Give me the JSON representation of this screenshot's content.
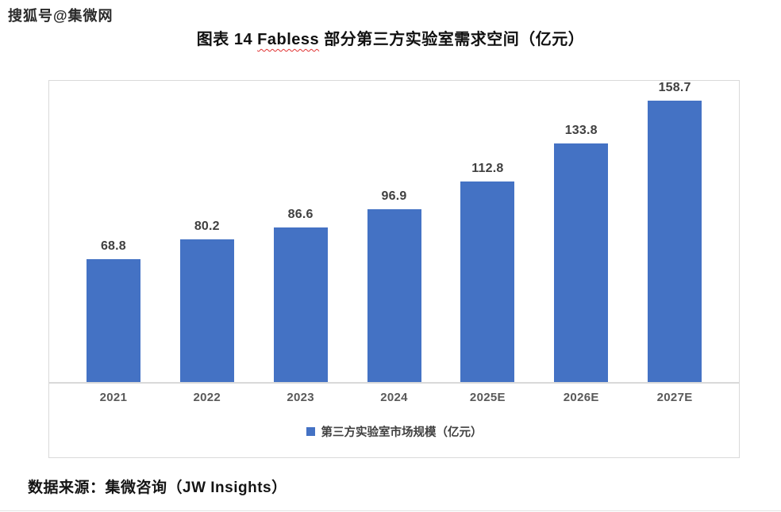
{
  "watermark": "搜狐号@集微网",
  "title": {
    "prefix": "图表 14 ",
    "highlight": "Fabless",
    "suffix": " 部分第三方实验室需求空间（亿元）"
  },
  "source": "数据来源：集微咨询（JW Insights）",
  "colors": {
    "bar": "#4472C4",
    "value_label": "#404040",
    "axis_label": "#595959",
    "axis_line": "#D9D9D9",
    "misspell_underline": "#E03131"
  },
  "chart_data": {
    "type": "bar",
    "title": "图表 14 Fabless 部分第三方实验室需求空间（亿元）",
    "categories": [
      "2021",
      "2022",
      "2023",
      "2024",
      "2025E",
      "2026E",
      "2027E"
    ],
    "values": [
      68.8,
      80.2,
      86.6,
      96.9,
      112.8,
      133.8,
      158.7
    ],
    "legend": "第三方实验室市场规模（亿元）",
    "legend_position": "bottom",
    "xlabel": "",
    "ylabel": "",
    "ylim": [
      0,
      170
    ],
    "grid": false,
    "y_axis_visible": false,
    "data_labels": true
  }
}
